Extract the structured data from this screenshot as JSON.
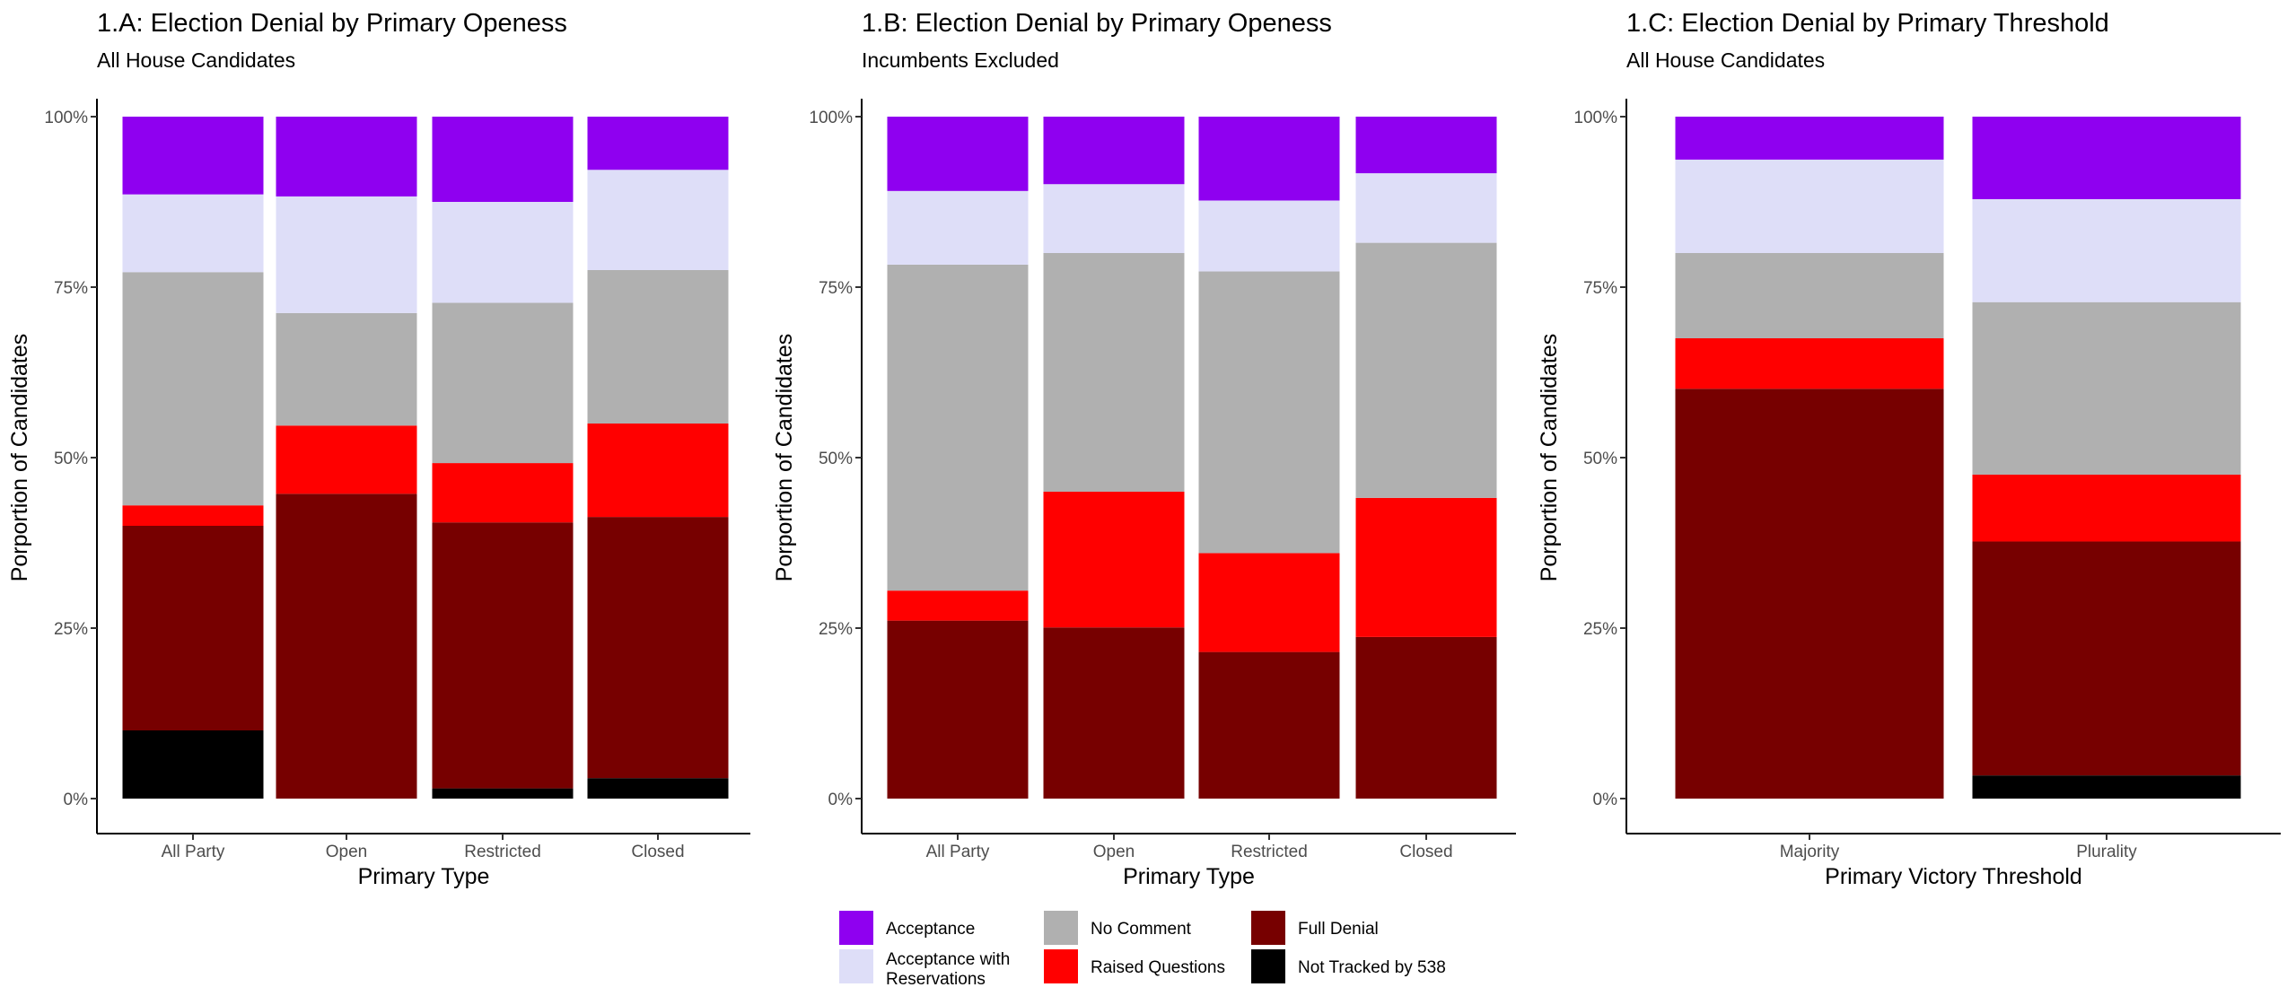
{
  "colors": {
    "Acceptance": "#8F00F0",
    "Acceptance with Reservations": "#DEDEF8",
    "No Comment": "#B0B0B0",
    "Raised Questions": "#FF0000",
    "Full Denial": "#770000",
    "Not Tracked by 538": "#000000"
  },
  "legend": {
    "items": [
      {
        "key": "Acceptance",
        "label": "Acceptance"
      },
      {
        "key": "Acceptance with Reservations",
        "label": "Acceptance with Reservations"
      },
      {
        "key": "No Comment",
        "label": "No Comment"
      },
      {
        "key": "Raised Questions",
        "label": "Raised Questions"
      },
      {
        "key": "Full Denial",
        "label": "Full Denial"
      },
      {
        "key": "Not Tracked by 538",
        "label": "Not Tracked by 538"
      }
    ]
  },
  "chart_data": [
    {
      "type": "bar",
      "stacked": true,
      "title": "1.A: Election Denial by Primary Openess",
      "subtitle": "All House Candidates",
      "xlabel": "Primary Type",
      "ylabel": "Porportion of Candidates",
      "ylim": [
        0,
        1
      ],
      "yticks": [
        "0%",
        "25%",
        "50%",
        "75%",
        "100%"
      ],
      "categories": [
        "All Party",
        "Open",
        "Restricted",
        "Closed"
      ],
      "series": [
        {
          "name": "Not Tracked by 538",
          "values": [
            0.1,
            0.0,
            0.015,
            0.03
          ]
        },
        {
          "name": "Full Denial",
          "values": [
            0.3,
            0.447,
            0.39,
            0.383
          ]
        },
        {
          "name": "Raised Questions",
          "values": [
            0.03,
            0.1,
            0.087,
            0.137
          ]
        },
        {
          "name": "No Comment",
          "values": [
            0.342,
            0.165,
            0.235,
            0.225
          ]
        },
        {
          "name": "Acceptance with Reservations",
          "values": [
            0.114,
            0.171,
            0.148,
            0.147
          ]
        },
        {
          "name": "Acceptance",
          "values": [
            0.114,
            0.117,
            0.125,
            0.078
          ]
        }
      ]
    },
    {
      "type": "bar",
      "stacked": true,
      "title": "1.B: Election Denial by Primary Openess",
      "subtitle": "Incumbents Excluded",
      "xlabel": "Primary Type",
      "ylabel": "Porportion of Candidates",
      "ylim": [
        0,
        1
      ],
      "yticks": [
        "0%",
        "25%",
        "50%",
        "75%",
        "100%"
      ],
      "categories": [
        "All Party",
        "Open",
        "Restricted",
        "Closed"
      ],
      "series": [
        {
          "name": "Not Tracked by 538",
          "values": [
            0.0,
            0.0,
            0.0,
            0.0
          ]
        },
        {
          "name": "Full Denial",
          "values": [
            0.261,
            0.251,
            0.215,
            0.237
          ]
        },
        {
          "name": "Raised Questions",
          "values": [
            0.044,
            0.199,
            0.145,
            0.204
          ]
        },
        {
          "name": "No Comment",
          "values": [
            0.478,
            0.35,
            0.413,
            0.374
          ]
        },
        {
          "name": "Acceptance with Reservations",
          "values": [
            0.108,
            0.101,
            0.104,
            0.102
          ]
        },
        {
          "name": "Acceptance",
          "values": [
            0.109,
            0.099,
            0.123,
            0.083
          ]
        }
      ]
    },
    {
      "type": "bar",
      "stacked": true,
      "title": "1.C: Election Denial by Primary Threshold",
      "subtitle": "All House Candidates",
      "xlabel": "Primary Victory Threshold",
      "ylabel": "Porportion of Candidates",
      "ylim": [
        0,
        1
      ],
      "yticks": [
        "0%",
        "25%",
        "50%",
        "75%",
        "100%"
      ],
      "categories": [
        "Majority",
        "Plurality"
      ],
      "series": [
        {
          "name": "Not Tracked by 538",
          "values": [
            0.0,
            0.034
          ]
        },
        {
          "name": "Full Denial",
          "values": [
            0.601,
            0.343
          ]
        },
        {
          "name": "Raised Questions",
          "values": [
            0.074,
            0.098
          ]
        },
        {
          "name": "No Comment",
          "values": [
            0.125,
            0.253
          ]
        },
        {
          "name": "Acceptance with Reservations",
          "values": [
            0.137,
            0.151
          ]
        },
        {
          "name": "Acceptance",
          "values": [
            0.063,
            0.121
          ]
        }
      ]
    }
  ]
}
